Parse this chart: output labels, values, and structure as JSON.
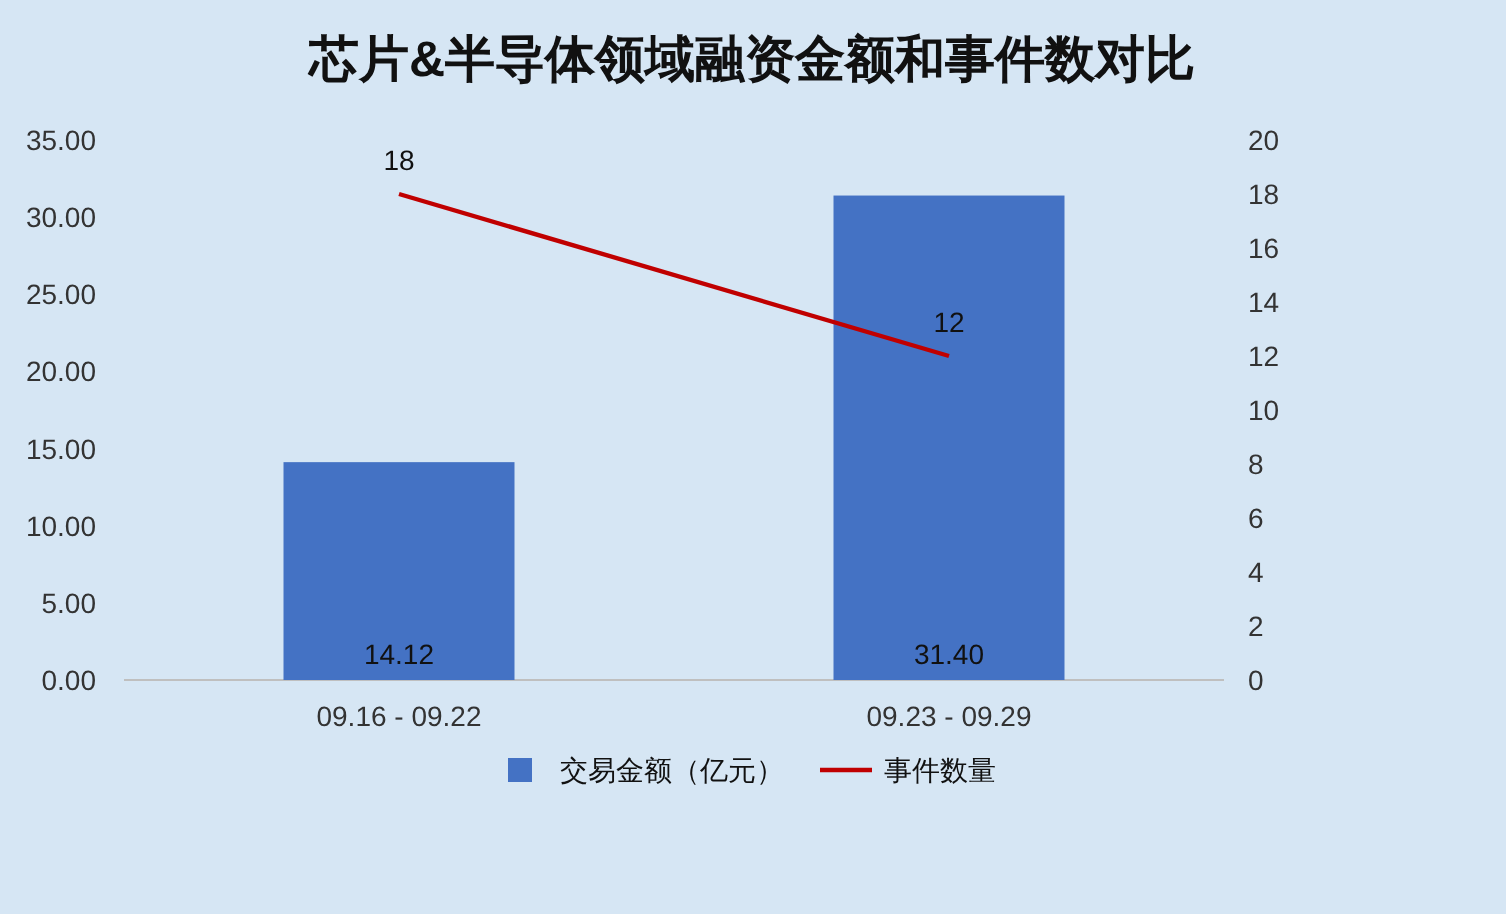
{
  "chart_data": {
    "type": "bar",
    "title": "芯片&半导体领域融资金额和事件数对比",
    "categories": [
      "09.16 - 09.22",
      "09.23 - 09.29"
    ],
    "series": [
      {
        "name": "交易金额（亿元）",
        "color": "#4472c4",
        "values": [
          14.12,
          31.4
        ],
        "value_labels": [
          "14.12",
          "31.40"
        ]
      },
      {
        "name": "事件数量",
        "type": "line",
        "axis": "y2",
        "color": "#c00000",
        "values": [
          18,
          12
        ],
        "value_labels": [
          "18",
          "12"
        ]
      }
    ],
    "ylim": [
      0,
      35
    ],
    "yticks": [
      {
        "value": 0,
        "label": "0.00"
      },
      {
        "value": 5,
        "label": "5.00"
      },
      {
        "value": 10,
        "label": "10.00"
      },
      {
        "value": 15,
        "label": "15.00"
      },
      {
        "value": 20,
        "label": "20.00"
      },
      {
        "value": 25,
        "label": "25.00"
      },
      {
        "value": 30,
        "label": "30.00"
      },
      {
        "value": 35,
        "label": "35.00"
      }
    ],
    "y2lim": [
      0,
      20
    ],
    "y2ticks": [
      0,
      2,
      4,
      6,
      8,
      10,
      12,
      14,
      16,
      18,
      20
    ],
    "legend": "bottom",
    "grid": false
  }
}
